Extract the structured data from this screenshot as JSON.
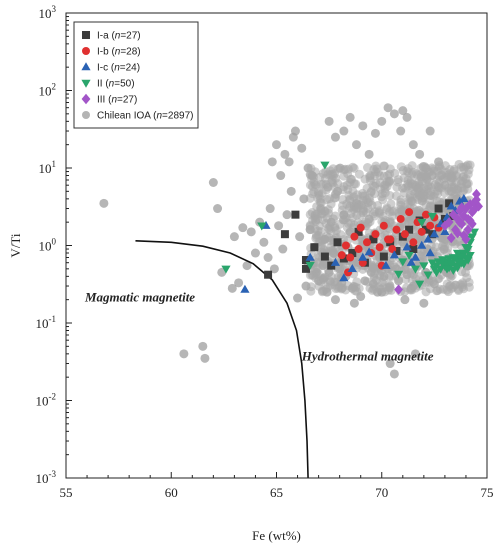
{
  "chart_data": {
    "type": "scatter",
    "title": "",
    "xlabel": "Fe (wt%)",
    "ylabel": "V/Ti",
    "xlim": [
      55,
      75
    ],
    "ylim": [
      0.001,
      1000
    ],
    "yscale": "log",
    "grid": false,
    "legend_position": "top-left",
    "x_ticks": [
      "55",
      "60",
      "65",
      "70",
      "75"
    ],
    "y_ticks": [
      {
        "base": "10",
        "exp": "-3"
      },
      {
        "base": "10",
        "exp": "-2"
      },
      {
        "base": "10",
        "exp": "-1"
      },
      {
        "base": "10",
        "exp": "0"
      },
      {
        "base": "10",
        "exp": "1"
      },
      {
        "base": "10",
        "exp": "2"
      },
      {
        "base": "10",
        "exp": "3"
      }
    ],
    "annotations": [
      {
        "text": "Magmatic magnetite",
        "x": 55.9,
        "y": 0.19
      },
      {
        "text": "Hydrothermal magnetite",
        "x": 66.2,
        "y": 0.033
      }
    ],
    "boundary_curve": [
      [
        58.3,
        1.15
      ],
      [
        60.0,
        1.1
      ],
      [
        61.5,
        0.98
      ],
      [
        62.8,
        0.8
      ],
      [
        63.9,
        0.58
      ],
      [
        64.8,
        0.36
      ],
      [
        65.5,
        0.18
      ],
      [
        65.95,
        0.08
      ],
      [
        66.2,
        0.03
      ],
      [
        66.35,
        0.01
      ],
      [
        66.45,
        0.003
      ],
      [
        66.5,
        0.001
      ]
    ],
    "series": [
      {
        "name": "I-a",
        "n": "n=27",
        "marker": "square",
        "color": "#3c3c3c",
        "points": [
          [
            64.6,
            0.42
          ],
          [
            65.4,
            1.4
          ],
          [
            65.9,
            2.5
          ],
          [
            66.4,
            0.5
          ],
          [
            66.4,
            0.65
          ],
          [
            66.8,
            0.95
          ],
          [
            67.3,
            0.72
          ],
          [
            67.6,
            0.55
          ],
          [
            67.9,
            1.1
          ],
          [
            68.2,
            0.68
          ],
          [
            68.6,
            0.8
          ],
          [
            68.9,
            1.5
          ],
          [
            69.2,
            0.6
          ],
          [
            69.6,
            1.2
          ],
          [
            70.1,
            0.72
          ],
          [
            70.4,
            1.1
          ],
          [
            70.7,
            0.85
          ],
          [
            71.0,
            1.3
          ],
          [
            71.3,
            1.6
          ],
          [
            71.5,
            0.9
          ],
          [
            71.8,
            2.1
          ],
          [
            72.1,
            1.6
          ],
          [
            72.4,
            1.4
          ],
          [
            72.7,
            3.0
          ],
          [
            73.0,
            2.2
          ],
          [
            73.2,
            3.5
          ],
          [
            73.4,
            2.4
          ]
        ]
      },
      {
        "name": "I-b",
        "n": "n=28",
        "marker": "circle",
        "color": "#e03030",
        "points": [
          [
            68.1,
            0.75
          ],
          [
            68.3,
            1.0
          ],
          [
            68.5,
            0.7
          ],
          [
            68.7,
            1.3
          ],
          [
            68.9,
            0.9
          ],
          [
            69.1,
            0.6
          ],
          [
            69.3,
            1.1
          ],
          [
            69.5,
            0.8
          ],
          [
            69.7,
            1.4
          ],
          [
            69.9,
            0.95
          ],
          [
            70.1,
            1.8
          ],
          [
            70.3,
            1.2
          ],
          [
            70.5,
            0.9
          ],
          [
            70.7,
            1.6
          ],
          [
            70.9,
            2.2
          ],
          [
            71.1,
            1.4
          ],
          [
            71.3,
            2.7
          ],
          [
            71.5,
            1.1
          ],
          [
            71.7,
            2.0
          ],
          [
            71.9,
            1.5
          ],
          [
            72.1,
            2.5
          ],
          [
            72.3,
            1.8
          ],
          [
            72.5,
            2.3
          ],
          [
            72.7,
            1.7
          ],
          [
            70.0,
            0.55
          ],
          [
            69.0,
            1.7
          ],
          [
            68.4,
            0.45
          ],
          [
            70.4,
            1.2
          ]
        ]
      },
      {
        "name": "I-c",
        "n": "n=24",
        "marker": "triangle-up",
        "color": "#2a62b4",
        "points": [
          [
            63.5,
            0.27
          ],
          [
            64.5,
            1.8
          ],
          [
            66.6,
            0.7
          ],
          [
            67.8,
            0.6
          ],
          [
            68.2,
            0.38
          ],
          [
            68.6,
            0.5
          ],
          [
            69.1,
            0.7
          ],
          [
            69.4,
            0.82
          ],
          [
            70.6,
            0.75
          ],
          [
            71.2,
            0.95
          ],
          [
            71.6,
            0.7
          ],
          [
            71.9,
            1.0
          ],
          [
            72.2,
            1.2
          ],
          [
            72.5,
            1.4
          ],
          [
            72.8,
            1.9
          ],
          [
            73.1,
            2.3
          ],
          [
            73.3,
            3.2
          ],
          [
            73.5,
            2.8
          ],
          [
            73.7,
            3.7
          ],
          [
            73.9,
            4.0
          ],
          [
            72.3,
            0.8
          ],
          [
            71.4,
            0.6
          ],
          [
            73.0,
            1.5
          ],
          [
            70.2,
            0.55
          ]
        ]
      },
      {
        "name": "II",
        "n": "n=50",
        "marker": "triangle-down",
        "color": "#2aa56c",
        "points": [
          [
            62.6,
            0.5
          ],
          [
            64.3,
            1.8
          ],
          [
            66.6,
            0.56
          ],
          [
            67.3,
            11.0
          ],
          [
            70.8,
            0.43
          ],
          [
            71.6,
            0.5
          ],
          [
            71.8,
            0.32
          ],
          [
            72.0,
            0.55
          ],
          [
            72.2,
            0.42
          ],
          [
            72.4,
            0.6
          ],
          [
            72.5,
            0.5
          ],
          [
            72.6,
            0.55
          ],
          [
            72.7,
            0.62
          ],
          [
            72.8,
            0.5
          ],
          [
            72.9,
            0.58
          ],
          [
            73.0,
            0.54
          ],
          [
            73.1,
            0.62
          ],
          [
            73.2,
            0.52
          ],
          [
            73.3,
            0.6
          ],
          [
            73.4,
            0.7
          ],
          [
            73.5,
            0.55
          ],
          [
            73.6,
            0.65
          ],
          [
            73.7,
            0.75
          ],
          [
            73.8,
            0.6
          ],
          [
            73.9,
            0.8
          ],
          [
            74.0,
            0.7
          ],
          [
            74.1,
            0.9
          ],
          [
            74.2,
            0.75
          ],
          [
            73.2,
            0.68
          ],
          [
            73.4,
            0.48
          ],
          [
            73.6,
            0.52
          ],
          [
            73.8,
            0.72
          ],
          [
            74.0,
            0.95
          ],
          [
            74.2,
            1.1
          ],
          [
            74.3,
            1.3
          ],
          [
            74.1,
            0.65
          ],
          [
            73.9,
            0.58
          ],
          [
            73.7,
            0.62
          ],
          [
            73.5,
            0.7
          ],
          [
            73.3,
            0.57
          ],
          [
            73.1,
            0.5
          ],
          [
            72.9,
            0.66
          ],
          [
            72.6,
            0.45
          ],
          [
            71.9,
            2.0
          ],
          [
            72.4,
            2.4
          ],
          [
            71.0,
            0.62
          ],
          [
            71.3,
            0.75
          ],
          [
            74.4,
            1.5
          ],
          [
            74.0,
            1.2
          ],
          [
            73.6,
            0.8
          ]
        ]
      },
      {
        "name": "III",
        "n": "n=27",
        "marker": "diamond",
        "color": "#a255c8",
        "points": [
          [
            70.8,
            0.27
          ],
          [
            73.0,
            1.8
          ],
          [
            73.2,
            2.0
          ],
          [
            73.4,
            2.5
          ],
          [
            73.5,
            1.6
          ],
          [
            73.6,
            2.2
          ],
          [
            73.7,
            2.8
          ],
          [
            73.8,
            1.9
          ],
          [
            73.9,
            2.4
          ],
          [
            74.0,
            3.0
          ],
          [
            74.1,
            2.2
          ],
          [
            74.2,
            3.4
          ],
          [
            74.3,
            2.7
          ],
          [
            74.4,
            3.6
          ],
          [
            74.5,
            4.6
          ],
          [
            74.6,
            3.2
          ],
          [
            74.1,
            1.6
          ],
          [
            74.3,
            1.9
          ],
          [
            73.9,
            1.35
          ],
          [
            74.0,
            1.2
          ],
          [
            73.6,
            1.45
          ],
          [
            73.3,
            1.25
          ],
          [
            74.4,
            2.9
          ],
          [
            74.2,
            2.1
          ],
          [
            73.8,
            3.1
          ],
          [
            74.5,
            3.9
          ],
          [
            73.7,
            2.0
          ]
        ]
      },
      {
        "name": "Chilean IOA",
        "n": "n=2897",
        "marker": "circle",
        "color": "#9e9e9e",
        "points": [
          [
            56.8,
            3.5
          ],
          [
            60.6,
            0.04
          ],
          [
            61.5,
            0.05
          ],
          [
            61.6,
            0.035
          ],
          [
            62.0,
            6.5
          ],
          [
            62.2,
            3.0
          ],
          [
            62.4,
            0.45
          ],
          [
            62.9,
            0.28
          ],
          [
            63.2,
            0.33
          ],
          [
            63.6,
            0.55
          ],
          [
            63.8,
            1.5
          ],
          [
            64.0,
            0.8
          ],
          [
            64.2,
            2.0
          ],
          [
            64.4,
            1.1
          ],
          [
            64.6,
            0.7
          ],
          [
            64.7,
            3.0
          ],
          [
            64.9,
            0.5
          ],
          [
            65.1,
            1.8
          ],
          [
            65.3,
            0.9
          ],
          [
            65.5,
            2.5
          ],
          [
            65.6,
            12.0
          ],
          [
            65.8,
            25.0
          ],
          [
            65.9,
            30.0
          ],
          [
            66.1,
            1.3
          ],
          [
            66.3,
            4.0
          ],
          [
            66.4,
            0.3
          ],
          [
            66.6,
            1.6
          ],
          [
            66.7,
            8.0
          ],
          [
            66.9,
            0.45
          ],
          [
            67.0,
            0.35
          ],
          [
            67.1,
            3.0
          ],
          [
            67.3,
            1.2
          ],
          [
            67.4,
            0.25
          ],
          [
            67.6,
            2.0
          ],
          [
            67.7,
            0.8
          ],
          [
            67.9,
            5.0
          ],
          [
            68.0,
            0.5
          ],
          [
            68.2,
            2.5
          ],
          [
            68.3,
            0.4
          ],
          [
            68.5,
            1.5
          ],
          [
            68.6,
            0.28
          ],
          [
            68.8,
            3.5
          ],
          [
            68.9,
            0.6
          ],
          [
            69.1,
            1.0
          ],
          [
            69.2,
            0.35
          ],
          [
            69.4,
            2.2
          ],
          [
            69.5,
            0.45
          ],
          [
            69.7,
            1.4
          ],
          [
            69.9,
            0.7
          ],
          [
            70.0,
            0.25
          ],
          [
            70.2,
            1.9
          ],
          [
            70.3,
            0.5
          ],
          [
            70.4,
            0.03
          ],
          [
            70.5,
            1.2
          ],
          [
            70.6,
            0.022
          ],
          [
            70.8,
            0.35
          ],
          [
            71.0,
            0.65
          ],
          [
            71.1,
            0.2
          ],
          [
            71.3,
            0.9
          ],
          [
            71.5,
            0.3
          ],
          [
            71.6,
            0.04
          ],
          [
            71.8,
            1.1
          ],
          [
            72.0,
            0.18
          ],
          [
            72.2,
            2.5
          ],
          [
            72.4,
            0.7
          ],
          [
            72.6,
            1.9
          ],
          [
            72.8,
            3.0
          ],
          [
            73.0,
            1.2
          ],
          [
            73.2,
            2.8
          ],
          [
            73.4,
            1.7
          ],
          [
            66.0,
            0.21
          ],
          [
            66.5,
            0.55
          ],
          [
            66.8,
            0.95
          ],
          [
            67.2,
            0.55
          ],
          [
            67.5,
            0.45
          ],
          [
            67.8,
            0.2
          ],
          [
            68.1,
            0.33
          ],
          [
            68.4,
            0.95
          ],
          [
            68.7,
            0.18
          ],
          [
            69.0,
            0.22
          ],
          [
            69.3,
            0.65
          ],
          [
            69.6,
            0.32
          ],
          [
            69.8,
            0.25
          ],
          [
            70.1,
            0.4
          ],
          [
            70.7,
            0.5
          ],
          [
            71.2,
            0.42
          ],
          [
            71.4,
            0.28
          ],
          [
            71.7,
            0.55
          ],
          [
            72.1,
            0.45
          ],
          [
            72.5,
            0.32
          ],
          [
            72.9,
            0.55
          ],
          [
            63.0,
            1.3
          ],
          [
            63.4,
            1.7
          ],
          [
            64.8,
            12.0
          ],
          [
            65.0,
            20.0
          ],
          [
            65.2,
            8.0
          ],
          [
            65.4,
            15.0
          ],
          [
            65.7,
            5.0
          ],
          [
            66.2,
            18.0
          ],
          [
            66.5,
            10.0
          ],
          [
            67.5,
            40.0
          ],
          [
            67.8,
            25.0
          ],
          [
            68.2,
            30.0
          ],
          [
            68.5,
            45.0
          ],
          [
            68.8,
            20.0
          ],
          [
            69.1,
            35.0
          ],
          [
            69.4,
            15.0
          ],
          [
            69.7,
            28.0
          ],
          [
            70.0,
            40.0
          ],
          [
            70.3,
            60.0
          ],
          [
            70.6,
            50.0
          ],
          [
            70.9,
            30.0
          ],
          [
            71.2,
            45.0
          ],
          [
            71.5,
            20.0
          ],
          [
            71.8,
            15.0
          ],
          [
            72.1,
            10.0
          ],
          [
            72.4,
            8.0
          ],
          [
            72.7,
            12.0
          ],
          [
            73.0,
            6.0
          ],
          [
            73.3,
            5.0
          ],
          [
            73.6,
            4.0
          ],
          [
            74.0,
            3.5
          ],
          [
            72.3,
            30.0
          ],
          [
            71.0,
            55.0
          ]
        ]
      }
    ]
  }
}
